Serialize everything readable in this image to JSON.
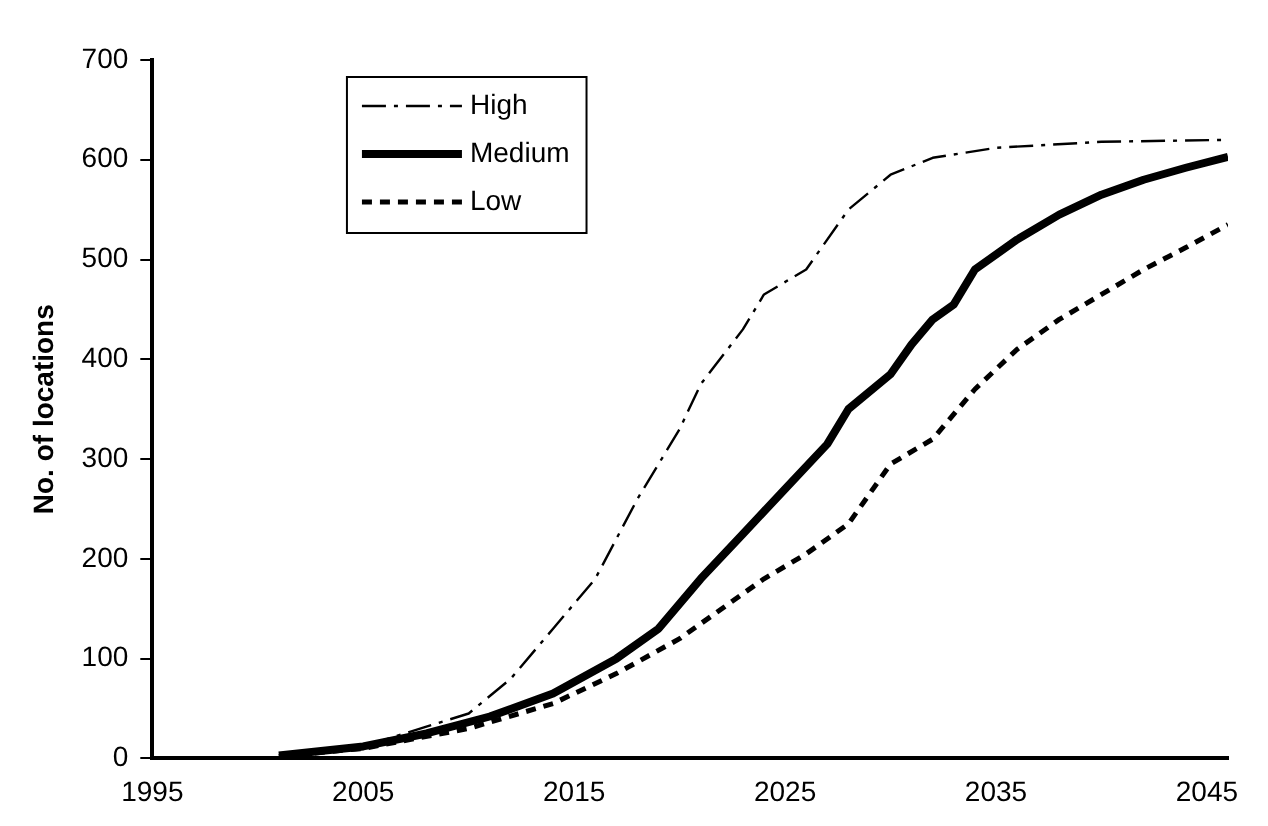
{
  "chart_data": {
    "type": "line",
    "ylabel": "No. of locations",
    "xlim": [
      1995,
      2046
    ],
    "xticks": [
      1995,
      2005,
      2015,
      2025,
      2035,
      2045
    ],
    "ylim": [
      0,
      700
    ],
    "yticks": [
      0,
      100,
      200,
      300,
      400,
      500,
      600,
      700
    ],
    "grid": false,
    "legend": "top left",
    "marker": "none",
    "series": [
      {
        "name": "High",
        "color": "#000000",
        "line_style": "dashed",
        "x": [
          2001,
          2005,
          2010,
          2012,
          2014,
          2016,
          2018,
          2020,
          2021,
          2023,
          2024,
          2026,
          2028,
          2030,
          2032,
          2035,
          2040,
          2046
        ],
        "values": [
          3,
          12,
          45,
          80,
          130,
          180,
          260,
          330,
          375,
          430,
          465,
          490,
          550,
          585,
          602,
          612,
          618,
          620
        ]
      },
      {
        "name": "Medium",
        "color": "#000000",
        "line_style": "solid",
        "x": [
          2001,
          2005,
          2008,
          2011,
          2014,
          2017,
          2019,
          2021,
          2023,
          2025,
          2027,
          2028,
          2030,
          2031,
          2032,
          2033,
          2034,
          2036,
          2038,
          2040,
          2042,
          2044,
          2046
        ],
        "values": [
          3,
          12,
          25,
          42,
          65,
          100,
          130,
          180,
          225,
          270,
          315,
          350,
          385,
          415,
          440,
          455,
          490,
          520,
          545,
          565,
          580,
          592,
          603
        ]
      },
      {
        "name": "Low",
        "color": "#000000",
        "line_style": "dotted",
        "x": [
          2001,
          2005,
          2010,
          2014,
          2017,
          2020,
          2022,
          2024,
          2026,
          2028,
          2030,
          2032,
          2034,
          2036,
          2038,
          2040,
          2042,
          2044,
          2046
        ],
        "values": [
          2,
          10,
          30,
          55,
          85,
          120,
          150,
          180,
          205,
          235,
          295,
          320,
          370,
          410,
          440,
          465,
          490,
          512,
          535
        ]
      }
    ]
  }
}
